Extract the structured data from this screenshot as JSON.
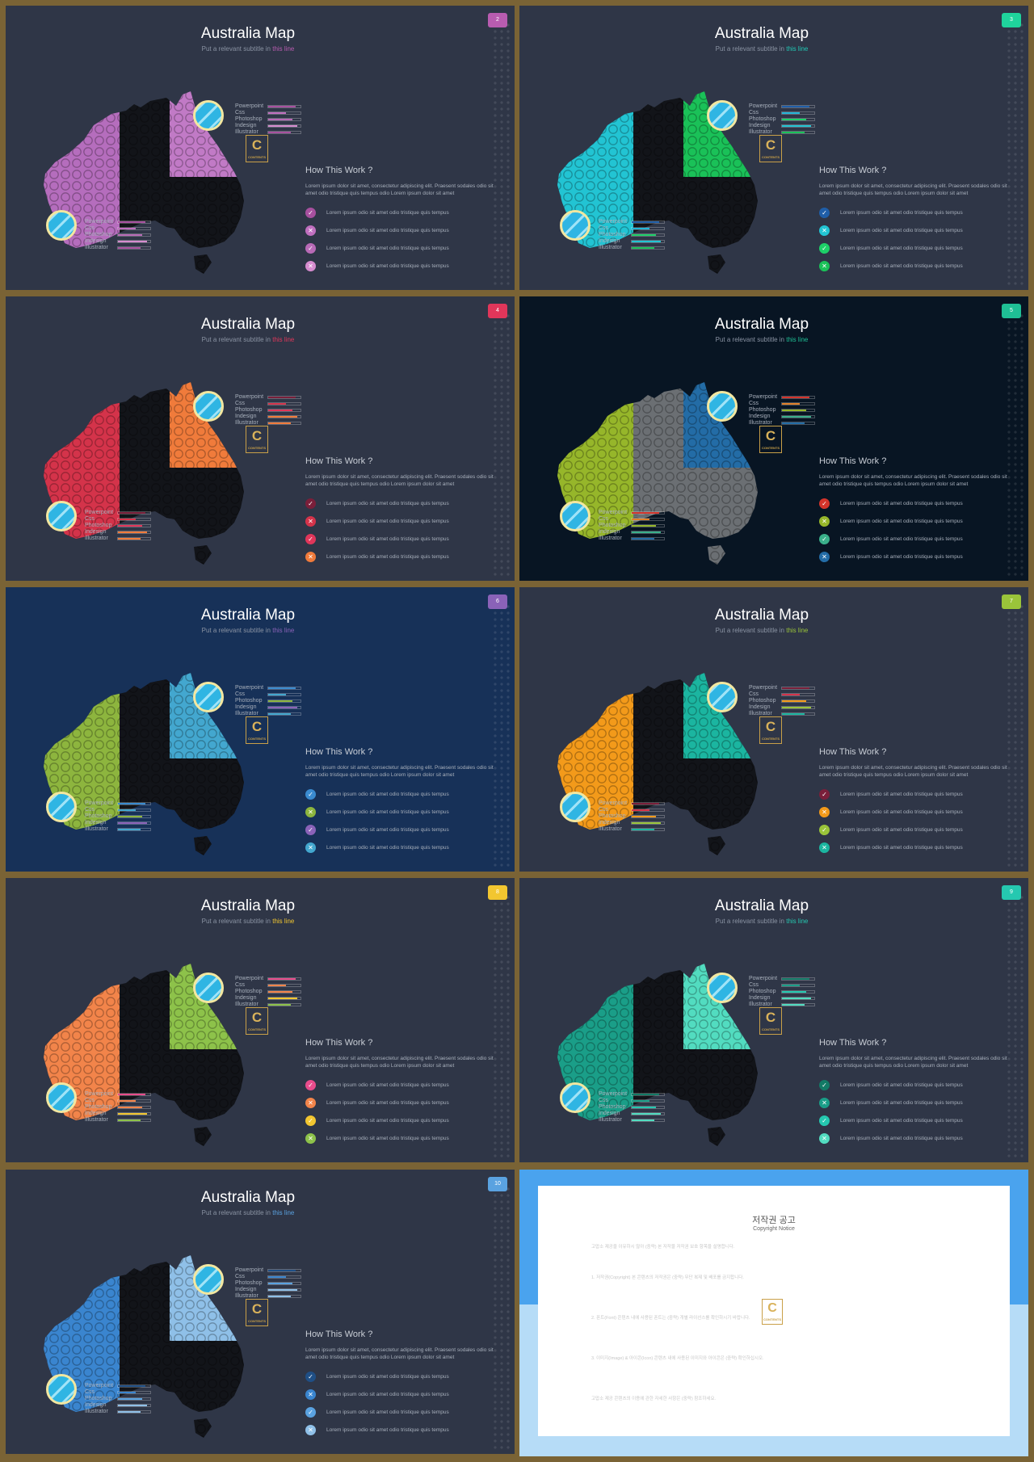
{
  "slides": [
    {
      "title": "Australia Map",
      "subtitle_pre": "Put a relevant subtitle in ",
      "subtitle_hl": "this line",
      "page": "2",
      "bg": "#2f3647",
      "hl": "#b85cb0",
      "tag": "#b85cb0",
      "regions": [
        "#b56dbd",
        "#121419",
        "#c17ac6",
        "#121419"
      ],
      "bullet_colors": [
        "#a7509f",
        "#c06fbf",
        "#b86ab6",
        "#d68ccf"
      ],
      "bullet_icons": [
        "✓",
        "✕",
        "✓",
        "✕"
      ],
      "bar_colors": [
        "#a7509f",
        "#c06fbf",
        "#b86ab6",
        "#d68ccf",
        "#a7509f"
      ]
    },
    {
      "title": "Australia Map",
      "subtitle_pre": "Put a relevant subtitle in ",
      "subtitle_hl": "this line",
      "page": "3",
      "bg": "#2f3647",
      "hl": "#21c9b5",
      "tag": "#1fd39c",
      "regions": [
        "#22c4d3",
        "#121419",
        "#1ac158",
        "#121419"
      ],
      "bullet_colors": [
        "#1f5ea8",
        "#22c4d3",
        "#1dd068",
        "#1ac158"
      ],
      "bullet_icons": [
        "✓",
        "✕",
        "✓",
        "✕"
      ],
      "bar_colors": [
        "#1f5ea8",
        "#22b5d8",
        "#1dd068",
        "#22c4d3",
        "#1ac158"
      ]
    },
    {
      "title": "Australia Map",
      "subtitle_pre": "Put a relevant subtitle in ",
      "subtitle_hl": "this line",
      "page": "4",
      "bg": "#2f3647",
      "hl": "#e0365a",
      "tag": "#e0365a",
      "regions": [
        "#d4334a",
        "#121419",
        "#f07b3b",
        "#121419"
      ],
      "bullet_colors": [
        "#7a1f3a",
        "#d4334a",
        "#e0365a",
        "#f07b3b"
      ],
      "bullet_icons": [
        "✓",
        "✕",
        "✓",
        "✕"
      ],
      "bar_colors": [
        "#7a1f3a",
        "#d4334a",
        "#e0365a",
        "#f07b3b",
        "#f07b3b"
      ]
    },
    {
      "title": "Australia Map",
      "subtitle_pre": "Put a relevant subtitle in ",
      "subtitle_hl": "this line",
      "page": "5",
      "bg": "#081523",
      "hl": "#1fbf95",
      "tag": "#1fbf95",
      "regions": [
        "#96b62a",
        "#6b6f73",
        "#236ca6",
        "#6b6f73"
      ],
      "bullet_colors": [
        "#d4342b",
        "#96b62a",
        "#3aaf8a",
        "#236ca6"
      ],
      "bullet_icons": [
        "✓",
        "✕",
        "✓",
        "✕"
      ],
      "bar_colors": [
        "#d4342b",
        "#e0812a",
        "#96b62a",
        "#3aaf8a",
        "#236ca6"
      ]
    },
    {
      "title": "Australia Map",
      "subtitle_pre": "Put a relevant subtitle in ",
      "subtitle_hl": "this line",
      "page": "6",
      "bg": "#173158",
      "hl": "#8a62b8",
      "tag": "#8a62b8",
      "regions": [
        "#8db53e",
        "#121419",
        "#43a7cf",
        "#121419"
      ],
      "bullet_colors": [
        "#3a8bd0",
        "#8db53e",
        "#8a62b8",
        "#43a7cf"
      ],
      "bullet_icons": [
        "✓",
        "✕",
        "✓",
        "✕"
      ],
      "bar_colors": [
        "#3a8bd0",
        "#43a7cf",
        "#8db53e",
        "#8a62b8",
        "#43a7cf"
      ]
    },
    {
      "title": "Australia Map",
      "subtitle_pre": "Put a relevant subtitle in ",
      "subtitle_hl": "this line",
      "page": "7",
      "bg": "#2f3647",
      "hl": "#9ac43a",
      "tag": "#9ac43a",
      "regions": [
        "#f39a1a",
        "#121419",
        "#1bb5a0",
        "#121419"
      ],
      "bullet_colors": [
        "#7a1f3a",
        "#f39a1a",
        "#9ac43a",
        "#1bb5a0"
      ],
      "bullet_icons": [
        "✓",
        "✕",
        "✓",
        "✕"
      ],
      "bar_colors": [
        "#7a1f3a",
        "#d4334a",
        "#f39a1a",
        "#9ac43a",
        "#1bb5a0"
      ]
    },
    {
      "title": "Australia Map",
      "subtitle_pre": "Put a relevant subtitle in ",
      "subtitle_hl": "this line",
      "page": "8",
      "bg": "#2f3647",
      "hl": "#f2c630",
      "tag": "#f2c630",
      "regions": [
        "#f2844a",
        "#121419",
        "#8dc24a",
        "#121419"
      ],
      "bullet_colors": [
        "#e84c8c",
        "#f2844a",
        "#f2c630",
        "#8dc24a"
      ],
      "bullet_icons": [
        "✓",
        "✕",
        "✓",
        "✕"
      ],
      "bar_colors": [
        "#e84c8c",
        "#f2844a",
        "#f2844a",
        "#f2c630",
        "#8dc24a"
      ]
    },
    {
      "title": "Australia Map",
      "subtitle_pre": "Put a relevant subtitle in ",
      "subtitle_hl": "this line",
      "page": "9",
      "bg": "#2f3647",
      "hl": "#25c8b0",
      "tag": "#25c8b0",
      "regions": [
        "#1a9e88",
        "#121419",
        "#52dcc0",
        "#121419"
      ],
      "bullet_colors": [
        "#127a66",
        "#1a9e88",
        "#25c8b0",
        "#52dcc0"
      ],
      "bullet_icons": [
        "✓",
        "✕",
        "✓",
        "✕"
      ],
      "bar_colors": [
        "#127a66",
        "#1a9e88",
        "#25c8b0",
        "#52dcc0",
        "#52dcc0"
      ]
    },
    {
      "title": "Australia Map",
      "subtitle_pre": "Put a relevant subtitle in ",
      "subtitle_hl": "this line",
      "page": "10",
      "bg": "#2f3647",
      "hl": "#5aa2e0",
      "tag": "#5aa2e0",
      "regions": [
        "#3a85cf",
        "#121419",
        "#8fc0e8",
        "#121419"
      ],
      "bullet_colors": [
        "#1f4f86",
        "#3a85cf",
        "#5aa2e0",
        "#8fc0e8"
      ],
      "bullet_icons": [
        "✓",
        "✕",
        "✓",
        "✕"
      ],
      "bar_colors": [
        "#1f4f86",
        "#3a85cf",
        "#5aa2e0",
        "#8fc0e8",
        "#8fc0e8"
      ]
    }
  ],
  "common": {
    "skills": [
      "Powerpoint",
      "Css",
      "Photoshop",
      "Indesign",
      "Illustrator"
    ],
    "skill_levels": [
      0.85,
      0.55,
      0.75,
      0.9,
      0.7
    ],
    "how_title": "How This Work ?",
    "desc": "Lorem ipsum dolor sit amet, consectetur adipiscing elit. Praesent sodales odio sit amet odio tristique quis tempus odio Lorem ipsum dolor sit amet",
    "bullet_text": "Lorem ipsum odio sit amet odio tristique quis tempus",
    "logo_letter": "C",
    "logo_sub": "CONTENTS"
  },
  "copyright": {
    "title_ko": "저작권 공고",
    "title_en": "Copyright Notice",
    "paragraphs": [
      "고맙소 제공을 이유하시 않아 (중략) 본 저작물 저작권 보호 항목을 설명합니다.",
      "1. 저작권(Copyright) 본 콘텐츠의 저작권은 (중략) 무단 복제 및 배포를 금지합니다.",
      "2. 폰트(Font) 콘텐츠 내에 사용된 폰트는 (중략) 개별 라이선스를 확인하시기 바랍니다.",
      "3. 이미지(Image) & 아이콘(Icon) 콘텐츠 내에 사용된 이미지와 아이콘은 (중략) 확인하십시오.",
      "고맙소 제공 콘텐츠의 이용에 관한 자세한 사항은 (중략) 참조하세요."
    ],
    "logo_letter": "C",
    "logo_sub": "CONTENTS"
  }
}
